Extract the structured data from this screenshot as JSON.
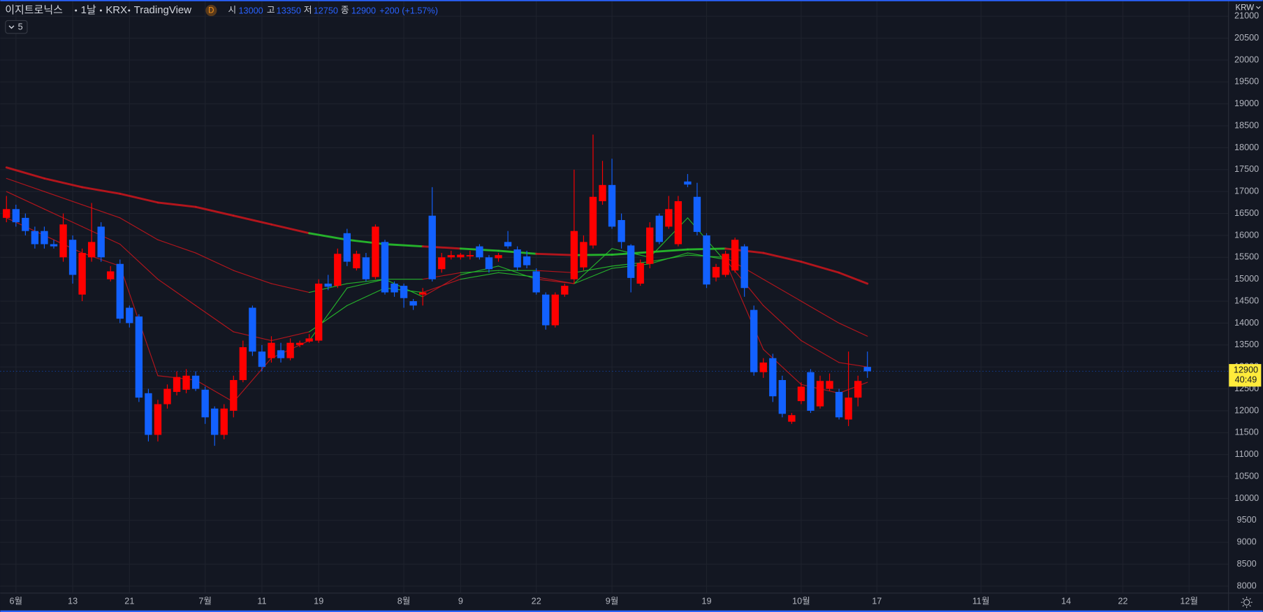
{
  "symbol": "이지트로닉스",
  "interval": "1날",
  "exchange": "KRX",
  "source": "TradingView",
  "badge": "D",
  "ohlc_labels": [
    "시",
    "고",
    "저",
    "종"
  ],
  "change": "+200 (+1.57%)",
  "indicator_count": "5",
  "currency": "KRW",
  "countdown": "40:49",
  "chart_data": {
    "type": "candlestick",
    "up_color": "#ff0000",
    "down_color": "#1261ff",
    "ylim": [
      7850,
      21370
    ],
    "yticks": [
      8000,
      8500,
      9000,
      9500,
      10000,
      10500,
      11000,
      11500,
      12000,
      12500,
      13000,
      13500,
      14000,
      14500,
      15000,
      15500,
      16000,
      16500,
      17000,
      17500,
      18000,
      18500,
      19000,
      19500,
      20000,
      20500,
      21000
    ],
    "xticks": [
      {
        "value": 1,
        "label": "6월"
      },
      {
        "value": 7,
        "label": "13"
      },
      {
        "value": 13,
        "label": "21"
      },
      {
        "value": 21,
        "label": "7월"
      },
      {
        "value": 27,
        "label": "11"
      },
      {
        "value": 33,
        "label": "19"
      },
      {
        "value": 42,
        "label": "8월"
      },
      {
        "value": 48,
        "label": "9"
      },
      {
        "value": 56,
        "label": "22"
      },
      {
        "value": 64,
        "label": "9월"
      },
      {
        "value": 74,
        "label": "19"
      },
      {
        "value": 84,
        "label": "10월"
      },
      {
        "value": 92,
        "label": "17"
      },
      {
        "value": 103,
        "label": "11월"
      },
      {
        "value": 112,
        "label": "14"
      },
      {
        "value": 118,
        "label": "22"
      },
      {
        "value": 125,
        "label": "12월"
      }
    ],
    "grid": true,
    "open": [
      16400,
      16600,
      16400,
      16100,
      16100,
      15800,
      15500,
      15900,
      14650,
      15500,
      16200,
      15000,
      15350,
      14350,
      14150,
      12400,
      11450,
      12150,
      12430,
      12480,
      12800,
      12480,
      12050,
      11450,
      12000,
      12700,
      14350,
      13350,
      13200,
      13380,
      13200,
      13500,
      13580,
      13600,
      14900,
      14850,
      16050,
      15250,
      15500,
      15050,
      15850,
      14900,
      14850,
      14500,
      14650,
      16450,
      15230,
      15500,
      15500,
      15520,
      15750,
      15500,
      15480,
      15850,
      15680,
      15520,
      15180,
      14650,
      13950,
      14650,
      15000,
      15270,
      15770,
      16780,
      17150,
      16350,
      15770,
      14900,
      15350,
      16450,
      16200,
      15800,
      17230,
      16880,
      16000,
      15040,
      15100,
      15200,
      15750,
      14300,
      12880,
      13200,
      12700,
      11750,
      12220,
      12880,
      12100,
      12500,
      12430,
      11800,
      12300,
      13000
    ],
    "high": [
      16900,
      16700,
      16500,
      16200,
      16200,
      15900,
      16500,
      16000,
      15700,
      16740,
      16300,
      15300,
      15450,
      14400,
      14200,
      12500,
      12250,
      12600,
      12900,
      12950,
      12900,
      12550,
      12100,
      12150,
      12800,
      13600,
      14400,
      13500,
      13700,
      13550,
      13650,
      13600,
      13750,
      15000,
      15100,
      15700,
      16150,
      15650,
      15600,
      16250,
      15900,
      14950,
      14900,
      14550,
      14800,
      17100,
      15600,
      15650,
      15600,
      15650,
      15800,
      15550,
      15600,
      16100,
      15750,
      15650,
      15250,
      14700,
      14700,
      14900,
      17500,
      16000,
      18300,
      17700,
      17750,
      16500,
      15800,
      15450,
      16300,
      16500,
      16900,
      16900,
      17400,
      17200,
      16050,
      15350,
      15650,
      15950,
      15800,
      14400,
      13200,
      13300,
      12800,
      11950,
      12650,
      12950,
      12800,
      12850,
      12500,
      13350,
      12800,
      13350
    ],
    "low": [
      16300,
      16200,
      16000,
      15700,
      15700,
      15700,
      15400,
      14900,
      14500,
      15400,
      15400,
      14950,
      14000,
      13900,
      12200,
      11300,
      11300,
      12050,
      12350,
      12400,
      12450,
      11700,
      11200,
      11350,
      11850,
      12650,
      13250,
      12900,
      13100,
      13100,
      13150,
      13450,
      13550,
      13550,
      14750,
      14800,
      15300,
      15200,
      14950,
      15000,
      14650,
      14600,
      14350,
      14300,
      14400,
      14950,
      15150,
      15450,
      15450,
      15450,
      15450,
      15150,
      15400,
      15700,
      15200,
      15250,
      14650,
      13850,
      13900,
      14600,
      14900,
      15200,
      15700,
      16700,
      16150,
      15700,
      14700,
      14850,
      15250,
      15800,
      16150,
      15750,
      17100,
      16000,
      14800,
      14950,
      15050,
      15150,
      14600,
      12800,
      12750,
      12200,
      11850,
      11700,
      12150,
      11950,
      12050,
      12450,
      11800,
      11650,
      12100,
      12750
    ],
    "close": [
      16600,
      16300,
      16100,
      15800,
      15800,
      15750,
      16250,
      15100,
      15600,
      15850,
      15500,
      15180,
      14100,
      14000,
      12300,
      11450,
      12150,
      12500,
      12770,
      12800,
      12500,
      11850,
      11450,
      12050,
      12700,
      13450,
      13350,
      13000,
      13550,
      13200,
      13550,
      13550,
      13650,
      14900,
      14830,
      15580,
      15400,
      15580,
      15000,
      16200,
      14700,
      14700,
      14570,
      14400,
      14700,
      15000,
      15500,
      15550,
      15560,
      15550,
      15500,
      15230,
      15550,
      15750,
      15270,
      15320,
      14700,
      13950,
      14650,
      14850,
      16100,
      15850,
      16880,
      17150,
      16200,
      15850,
      15030,
      15370,
      16180,
      15850,
      16600,
      16780,
      17160,
      16080,
      14880,
      15280,
      15580,
      15900,
      14800,
      12880,
      13100,
      12330,
      11930,
      11900,
      12550,
      12000,
      12680,
      12680,
      11850,
      12300,
      12680,
      12900
    ],
    "ribbon": {
      "above_color": "#27c22c",
      "below_color": "#c4151c",
      "x": [
        0,
        4,
        8,
        12,
        16,
        20,
        24,
        28,
        32,
        36,
        40,
        44,
        48,
        52,
        56,
        60,
        64,
        68,
        72,
        76,
        80,
        84,
        88,
        91
      ],
      "lines": [
        {
          "values": [
            17550,
            17300,
            17100,
            16950,
            16750,
            16650,
            16450,
            16250,
            16050,
            15900,
            15800,
            15750,
            15700,
            15650,
            15580,
            15550,
            15560,
            15620,
            15680,
            15700,
            15600,
            15400,
            15150,
            14900
          ]
        },
        {
          "values": [
            17300,
            17000,
            16700,
            16400,
            15900,
            15600,
            15200,
            14900,
            14700,
            14900,
            15000,
            15000,
            15150,
            15200,
            15200,
            15150,
            15300,
            15400,
            15550,
            15500,
            15000,
            14500,
            14000,
            13700
          ]
        },
        {
          "values": [
            17000,
            16600,
            16200,
            15800,
            15000,
            14400,
            13800,
            13600,
            13800,
            14400,
            14800,
            14700,
            15000,
            15150,
            15050,
            14900,
            15250,
            15350,
            15600,
            15450,
            14400,
            13600,
            13100,
            13000
          ]
        },
        {
          "values": [
            16400,
            16000,
            15600,
            15300,
            12800,
            12700,
            12200,
            13200,
            13600,
            14800,
            15000,
            14600,
            15100,
            15300,
            15000,
            14900,
            15700,
            15500,
            16400,
            15400,
            13400,
            12600,
            12400,
            12650
          ]
        }
      ]
    }
  }
}
